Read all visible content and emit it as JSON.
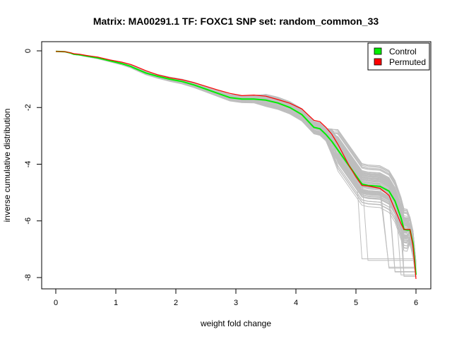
{
  "chart_data": {
    "type": "line",
    "title": "Matrix: MA00291.1 TF: FOXC1 SNP set: random_common_33",
    "xlabel": "weight fold change",
    "ylabel": "inverse cumulative distribution",
    "xlim": [
      0,
      6
    ],
    "ylim": [
      -8,
      0
    ],
    "x_ticks": [
      "0",
      "1",
      "2",
      "3",
      "4",
      "5",
      "6"
    ],
    "y_ticks": [
      "0",
      "-2",
      "-4",
      "-6",
      "-8"
    ],
    "legend_position": "top-right",
    "grid": false,
    "colors": {
      "control": "#00ee00",
      "permuted": "#ff0000",
      "background_lines": "#bebebe"
    },
    "series": [
      {
        "name": "Control",
        "x": [
          0,
          0.15,
          0.25,
          0.3,
          0.4,
          0.5,
          0.7,
          0.9,
          1.1,
          1.25,
          1.3,
          1.5,
          1.7,
          1.9,
          2.1,
          2.3,
          2.5,
          2.7,
          2.9,
          3.1,
          3.3,
          3.5,
          3.7,
          3.9,
          4.1,
          4.3,
          4.4,
          4.5,
          4.6,
          4.7,
          4.8,
          4.9,
          5.0,
          5.1,
          5.2,
          5.4,
          5.55,
          5.65,
          5.75,
          5.8,
          5.85,
          5.9,
          5.95,
          6.0
        ],
        "y": [
          -0.02,
          -0.03,
          -0.08,
          -0.12,
          -0.14,
          -0.18,
          -0.25,
          -0.35,
          -0.45,
          -0.55,
          -0.6,
          -0.78,
          -0.9,
          -1.0,
          -1.08,
          -1.2,
          -1.35,
          -1.5,
          -1.65,
          -1.7,
          -1.7,
          -1.74,
          -1.84,
          -2.0,
          -2.25,
          -2.7,
          -2.75,
          -2.95,
          -3.2,
          -3.5,
          -3.8,
          -4.1,
          -4.4,
          -4.7,
          -4.75,
          -4.78,
          -4.95,
          -5.3,
          -5.9,
          -6.3,
          -6.32,
          -6.32,
          -6.8,
          -7.9
        ]
      },
      {
        "name": "Permuted",
        "x": [
          0,
          0.15,
          0.25,
          0.3,
          0.4,
          0.5,
          0.7,
          0.9,
          1.1,
          1.25,
          1.3,
          1.5,
          1.7,
          1.9,
          2.1,
          2.3,
          2.5,
          2.7,
          2.9,
          3.1,
          3.3,
          3.5,
          3.7,
          3.9,
          4.1,
          4.3,
          4.4,
          4.5,
          4.6,
          4.7,
          4.8,
          4.9,
          5.0,
          5.1,
          5.2,
          5.4,
          5.55,
          5.65,
          5.75,
          5.8,
          5.85,
          5.9,
          5.95,
          6.0
        ],
        "y": [
          -0.02,
          -0.03,
          -0.07,
          -0.1,
          -0.12,
          -0.16,
          -0.22,
          -0.32,
          -0.4,
          -0.48,
          -0.52,
          -0.7,
          -0.85,
          -0.95,
          -1.02,
          -1.12,
          -1.25,
          -1.38,
          -1.5,
          -1.58,
          -1.56,
          -1.6,
          -1.72,
          -1.85,
          -2.05,
          -2.45,
          -2.5,
          -2.7,
          -2.95,
          -3.3,
          -3.7,
          -4.1,
          -4.45,
          -4.75,
          -4.77,
          -4.85,
          -5.1,
          -5.6,
          -6.1,
          -6.3,
          -6.3,
          -6.3,
          -6.9,
          -8.05
        ]
      }
    ]
  },
  "legend": {
    "items": [
      {
        "label": "Control",
        "color": "#00ee00"
      },
      {
        "label": "Permuted",
        "color": "#ff0000"
      }
    ]
  }
}
